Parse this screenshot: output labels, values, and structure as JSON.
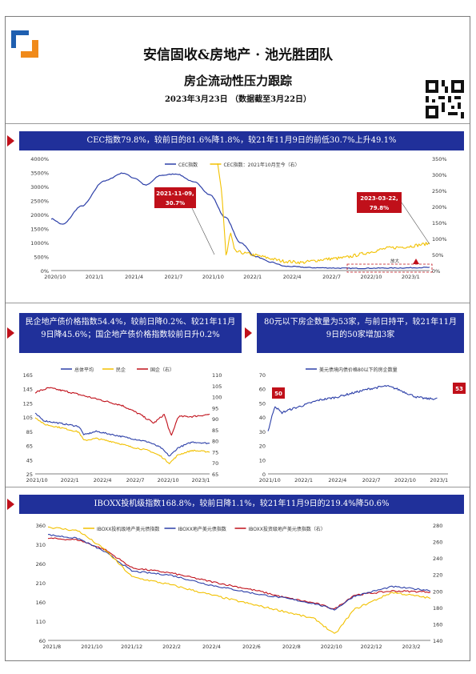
{
  "header": {
    "title": "安信固收&房地产 · 池光胜团队",
    "subtitle": "房企流动性压力跟踪",
    "date_line": "2023年3月23日 （数据截至3月22日）"
  },
  "charts": {
    "cec": {
      "banner": "CEC指数79.8%，较前日的81.6%降1.8%，较21年11月9日的前低30.7%上升49.1%",
      "legend": [
        "CEC指数",
        "CEC指数：2021年10月至今（右）"
      ],
      "x_ticks": [
        "2020/10",
        "2021/1",
        "2021/4",
        "2021/7",
        "2021/10",
        "2022/1",
        "2022/4",
        "2022/7",
        "2022/10",
        "2023/1"
      ],
      "y_left_ticks": [
        "0%",
        "500%",
        "1000%",
        "1500%",
        "2000%",
        "2500%",
        "3000%",
        "3500%",
        "4000%"
      ],
      "y_right_ticks": [
        "0%",
        "50%",
        "100%",
        "150%",
        "200%",
        "250%",
        "300%",
        "350%"
      ],
      "callout_left": [
        "2021-11-09,",
        "30.7%"
      ],
      "callout_right": [
        "2023-03-22,",
        "79.8%"
      ],
      "zoom_label": "放大",
      "colors": {
        "left": "#2c3fa8",
        "right": "#f2c100",
        "callout": "#c0101a"
      }
    },
    "private": {
      "banner": "民企地产债价格指数54.4%，较前日降0.2%、较21年11月9日降45.6%；国企地产债价格指数较前日升0.2%",
      "legend": [
        "总体平均",
        "民企",
        "国企（右）"
      ],
      "x_ticks": [
        "2021/10",
        "2022/1",
        "2022/4",
        "2022/7",
        "2022/10",
        "2023/1"
      ],
      "y_left_ticks": [
        "25",
        "45",
        "65",
        "85",
        "105",
        "125",
        "145",
        "165"
      ],
      "y_right_ticks": [
        "65",
        "70",
        "75",
        "80",
        "85",
        "90",
        "95",
        "100",
        "105",
        "110"
      ],
      "colors": {
        "avg": "#2c3fa8",
        "private": "#f2c100",
        "state": "#c0101a"
      }
    },
    "count": {
      "banner": "80元以下房企数量为53家，与前日持平，较21年11月9日的50家增加3家",
      "legend": [
        "美元债境内债价格80以下的房企数量"
      ],
      "x_ticks": [
        "2021/10",
        "2022/1",
        "2022/4",
        "2022/7",
        "2022/10",
        "2023/1"
      ],
      "y_ticks": [
        "0",
        "10",
        "20",
        "30",
        "40",
        "50",
        "60",
        "70"
      ],
      "label_start": "50",
      "label_end": "53",
      "colors": {
        "line": "#2c3fa8",
        "label": "#c0101a"
      }
    },
    "iboxx": {
      "banner": "IBOXX投机级指数168.8%，较前日降1.1%，较21年11月9日的219.4%降50.6%",
      "legend": [
        "IBOXX投机级地产美元债指数",
        "IBOXX地产美元债指数",
        "IBOXX投资级地产美元债指数（右）"
      ],
      "x_ticks": [
        "2021/8",
        "2021/10",
        "2021/12",
        "2022/2",
        "2022/4",
        "2022/6",
        "2022/8",
        "2022/10",
        "2022/12",
        "2023/2"
      ],
      "y_left_ticks": [
        "60",
        "110",
        "160",
        "210",
        "260",
        "310",
        "360"
      ],
      "y_right_ticks": [
        "140",
        "160",
        "180",
        "200",
        "220",
        "240",
        "260",
        "280"
      ],
      "colors": {
        "spec": "#f2c100",
        "all": "#2c3fa8",
        "inv": "#c0101a"
      }
    }
  }
}
